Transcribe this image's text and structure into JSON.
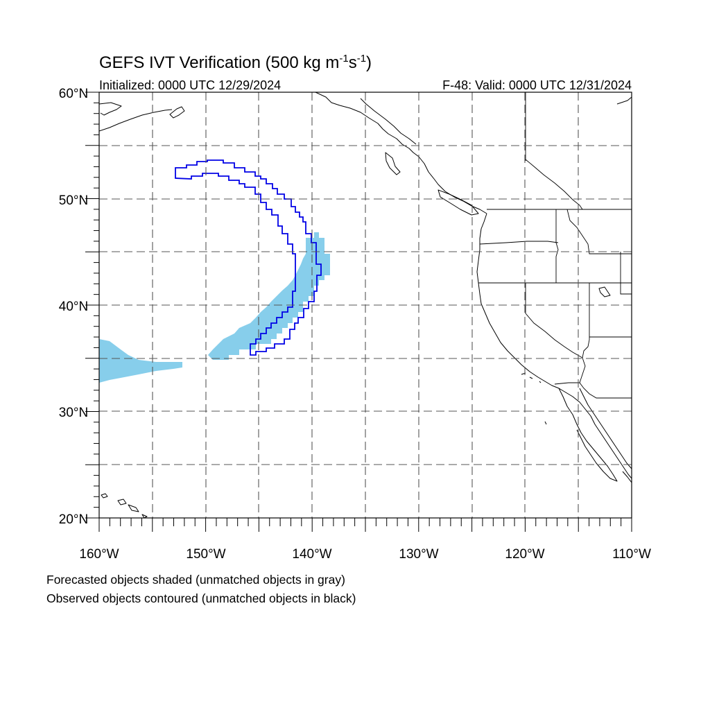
{
  "title": {
    "main": "GEFS IVT Verification (500 kg m",
    "sup1": "-1",
    "mid": "s",
    "sup2": "-1",
    "close": ")"
  },
  "subtitle": {
    "left": "Initialized: 0000 UTC 12/29/2024",
    "right": "F-48: Valid: 0000 UTC 12/31/2024"
  },
  "lat_labels": [
    "60°N",
    "50°N",
    "40°N",
    "30°N",
    "20°N"
  ],
  "lon_labels": [
    "160°W",
    "150°W",
    "140°W",
    "130°W",
    "120°W",
    "110°W"
  ],
  "footnote": {
    "line1": "Forecasted objects shaded (unmatched objects in gray)",
    "line2": "Observed objects contoured (unmatched objects in black)"
  },
  "colors": {
    "forecast_fill": "#87ceeb",
    "observed_contour": "#0000e6",
    "coastline": "#000000",
    "grid": "#555555"
  },
  "map_extent": {
    "lon": [
      -160,
      -110
    ],
    "lat": [
      20,
      60
    ]
  }
}
